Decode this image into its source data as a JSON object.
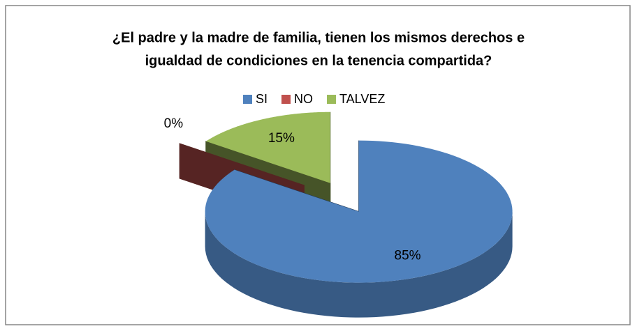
{
  "chart_data": {
    "type": "pie3d",
    "title": [
      "¿El padre y la madre de familia, tienen los mismos derechos e",
      "igualdad de condiciones en la tenencia compartida?"
    ],
    "categories": [
      "SI",
      "NO",
      "TALVEZ"
    ],
    "values": [
      85,
      0,
      15
    ],
    "value_labels": [
      "85%",
      "0%",
      "15%"
    ],
    "colors": [
      "#4f81bd",
      "#c0504d",
      "#9bbb59"
    ],
    "legend": "top"
  }
}
